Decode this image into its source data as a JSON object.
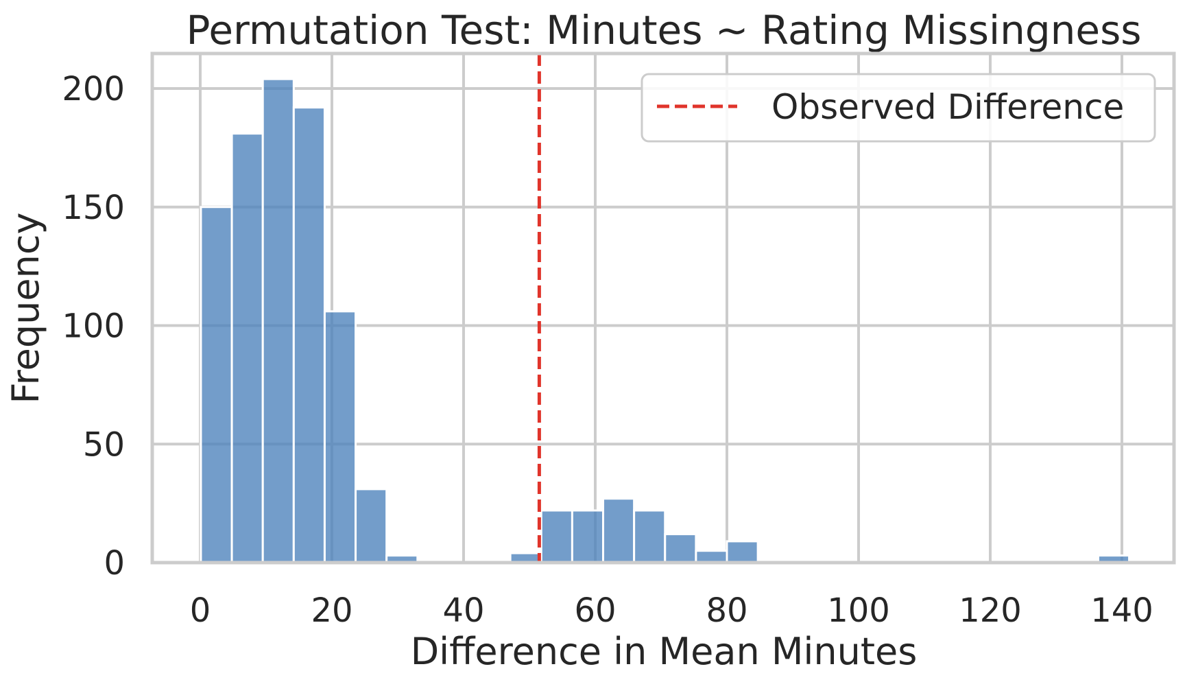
{
  "chart_data": {
    "type": "bar",
    "title": "Permutation Test: Minutes ~ Rating Missingness",
    "xlabel": "Difference in Mean Minutes",
    "ylabel": "Frequency",
    "xlim": [
      -7,
      148
    ],
    "ylim": [
      0,
      214
    ],
    "xticks": [
      0,
      20,
      40,
      60,
      80,
      100,
      120,
      140
    ],
    "yticks": [
      0,
      50,
      100,
      150,
      200
    ],
    "grid": true,
    "bin_width": 4.7,
    "bars": [
      {
        "start": 0.1,
        "count": 150
      },
      {
        "start": 4.8,
        "count": 181
      },
      {
        "start": 9.5,
        "count": 204
      },
      {
        "start": 14.2,
        "count": 192
      },
      {
        "start": 18.9,
        "count": 106
      },
      {
        "start": 23.6,
        "count": 31
      },
      {
        "start": 28.3,
        "count": 3
      },
      {
        "start": 33.0,
        "count": 0
      },
      {
        "start": 37.7,
        "count": 0
      },
      {
        "start": 42.4,
        "count": 0
      },
      {
        "start": 47.1,
        "count": 4
      },
      {
        "start": 51.8,
        "count": 22
      },
      {
        "start": 56.5,
        "count": 22
      },
      {
        "start": 61.2,
        "count": 27
      },
      {
        "start": 65.9,
        "count": 22
      },
      {
        "start": 70.6,
        "count": 12
      },
      {
        "start": 75.3,
        "count": 5
      },
      {
        "start": 80.0,
        "count": 9
      },
      {
        "start": 84.7,
        "count": 0
      },
      {
        "start": 89.4,
        "count": 1
      },
      {
        "start": 94.1,
        "count": 0
      },
      {
        "start": 98.8,
        "count": 0
      },
      {
        "start": 103.5,
        "count": 0
      },
      {
        "start": 108.2,
        "count": 0
      },
      {
        "start": 112.9,
        "count": 0
      },
      {
        "start": 117.6,
        "count": 0
      },
      {
        "start": 122.3,
        "count": 0
      },
      {
        "start": 127.0,
        "count": 0
      },
      {
        "start": 131.7,
        "count": 0
      },
      {
        "start": 136.4,
        "count": 3
      }
    ],
    "observed_difference": 51.5,
    "legend": {
      "placement": "upper right",
      "entries": [
        {
          "label": "Observed Difference",
          "style": "dashed-line",
          "color": "#e0342b"
        }
      ]
    },
    "colors": {
      "bar": "#4c81bb",
      "observed_line": "#e0342b",
      "grid": "#cccccc"
    }
  }
}
